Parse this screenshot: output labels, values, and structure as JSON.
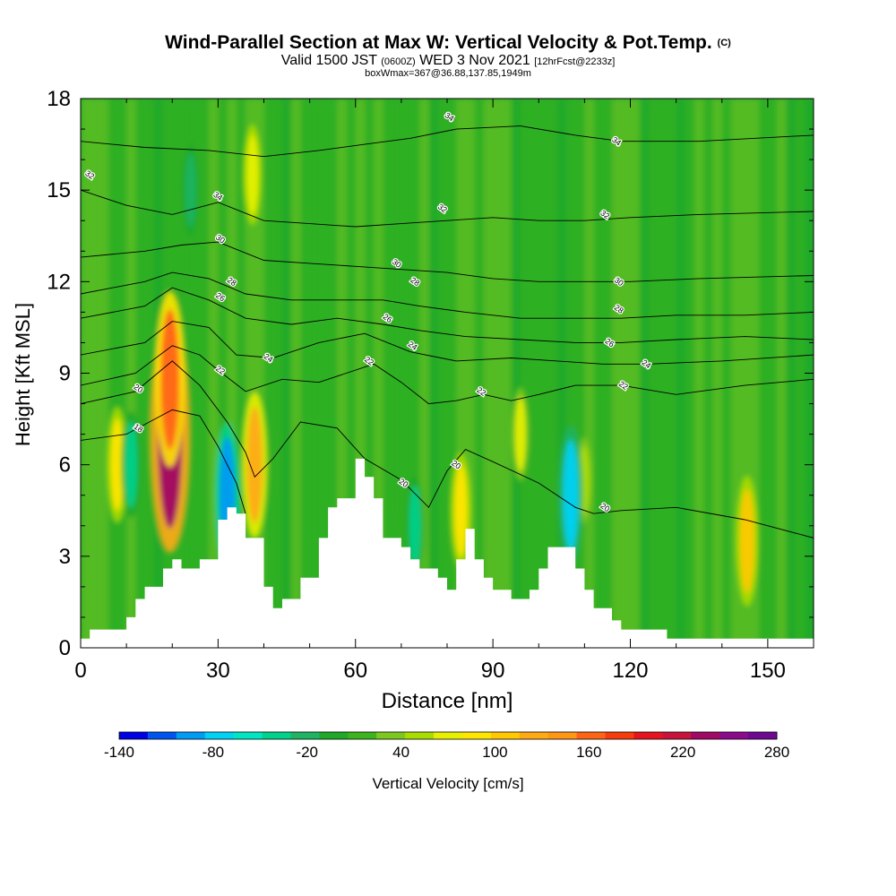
{
  "header": {
    "title": "Wind-Parallel Section at Max W: Vertical Velocity & Pot.Temp.",
    "copyright": "(C)",
    "valid_prefix": "Valid 1500 JST",
    "valid_utc": "(0600Z)",
    "valid_date": "WED 3 Nov 2021",
    "forecast": "[12hrFcst@2233z]",
    "box_wmax": "boxWmax=367@36.88,137.85,1949m"
  },
  "colorbar": {
    "title": "Vertical Velocity [cm/s]",
    "tick_labels": [
      "-140",
      "-80",
      "-20",
      "40",
      "100",
      "160",
      "220",
      "280"
    ],
    "colors": [
      "#0000e6",
      "#0055ee",
      "#009bf5",
      "#00d2f5",
      "#00e6c3",
      "#00d28c",
      "#1eb464",
      "#1eaa28",
      "#3cb41e",
      "#7dc81e",
      "#aadc00",
      "#e6f000",
      "#ffe600",
      "#ffc800",
      "#ffaa14",
      "#ff9614",
      "#ff6414",
      "#f53c0a",
      "#e6141e",
      "#c8143c",
      "#a00a64",
      "#8c0a8c",
      "#6e0a91"
    ]
  },
  "chart_data": {
    "type": "heatmap",
    "title": "Wind-Parallel Section at Max W: Vertical Velocity & Pot.Temp.",
    "xlabel": "Distance [nm]",
    "ylabel": "Height [Kft MSL]",
    "xlim": [
      0,
      160
    ],
    "ylim": [
      0,
      18
    ],
    "x_ticks": [
      0,
      30,
      60,
      90,
      120,
      150
    ],
    "y_ticks": [
      0,
      3,
      6,
      9,
      12,
      15,
      18
    ],
    "x_tick_labels": [
      "0",
      "30",
      "60",
      "90",
      "120",
      "150"
    ],
    "y_tick_labels": [
      "0",
      "3",
      "6",
      "9",
      "12",
      "15",
      "18"
    ],
    "background_fill": "#1eaa28",
    "terrain": {
      "x": [
        0,
        2,
        8,
        10,
        12,
        14,
        18,
        20,
        22,
        26,
        30,
        32,
        34,
        36,
        40,
        42,
        44,
        48,
        52,
        54,
        56,
        60,
        62,
        64,
        66,
        70,
        72,
        74,
        78,
        80,
        82,
        84,
        86,
        88,
        90,
        94,
        98,
        100,
        102,
        104,
        108,
        110,
        112,
        116,
        118,
        122,
        126,
        128,
        130,
        160
      ],
      "y": [
        0.3,
        0.6,
        0.6,
        1.0,
        1.6,
        2.0,
        2.6,
        2.9,
        2.6,
        2.9,
        4.2,
        4.6,
        4.4,
        3.6,
        2.0,
        1.3,
        1.6,
        2.3,
        3.6,
        4.6,
        4.9,
        6.2,
        5.6,
        4.9,
        3.6,
        3.3,
        2.9,
        2.6,
        2.3,
        1.9,
        2.9,
        3.9,
        2.9,
        2.3,
        1.9,
        1.6,
        1.9,
        2.6,
        3.3,
        3.3,
        2.6,
        1.9,
        1.3,
        0.9,
        0.6,
        0.6,
        0.6,
        0.3,
        0.3,
        0.3
      ]
    },
    "velocity_features": [
      {
        "name": "max updraft",
        "x": 19.5,
        "y": 7.0,
        "w_cms": 240
      },
      {
        "name": "updraft",
        "x": 19.5,
        "y": 8.8,
        "w_cms": 160
      },
      {
        "name": "updraft",
        "x": 8.0,
        "y": 6.0,
        "w_cms": 80
      },
      {
        "name": "updraft",
        "x": 38.0,
        "y": 6.0,
        "w_cms": 120
      },
      {
        "name": "updraft",
        "x": 37.5,
        "y": 15.5,
        "w_cms": 60
      },
      {
        "name": "updraft",
        "x": 83.0,
        "y": 4.5,
        "w_cms": 80
      },
      {
        "name": "updraft",
        "x": 96.0,
        "y": 7.0,
        "w_cms": 50
      },
      {
        "name": "updraft",
        "x": 145.5,
        "y": 3.5,
        "w_cms": 100
      },
      {
        "name": "updraft",
        "x": 110.0,
        "y": 5.5,
        "w_cms": 40
      },
      {
        "name": "downdraft",
        "x": 32.0,
        "y": 5.0,
        "w_cms": -120
      },
      {
        "name": "downdraft",
        "x": 107.0,
        "y": 5.0,
        "w_cms": -110
      },
      {
        "name": "downdraft",
        "x": 73.0,
        "y": 4.0,
        "w_cms": -60
      },
      {
        "name": "downdraft",
        "x": 11.0,
        "y": 6.0,
        "w_cms": -70
      },
      {
        "name": "downdraft",
        "x": 24.0,
        "y": 15.0,
        "w_cms": -50
      }
    ],
    "theta_contours": [
      {
        "label": "18",
        "level": 18,
        "pts": [
          [
            0,
            6.8
          ],
          [
            10,
            7.0
          ],
          [
            20,
            7.8
          ],
          [
            26,
            7.6
          ],
          [
            30,
            6.6
          ],
          [
            34,
            5.4
          ],
          [
            36,
            4.4
          ]
        ],
        "labels_at": [
          [
            12.6,
            7.2
          ]
        ]
      },
      {
        "label": "20",
        "level": 20,
        "pts": [
          [
            0,
            8.0
          ],
          [
            12,
            8.4
          ],
          [
            20,
            9.4
          ],
          [
            26,
            8.6
          ],
          [
            32,
            7.4
          ],
          [
            36,
            6.4
          ],
          [
            38,
            5.6
          ],
          [
            42,
            6.2
          ],
          [
            48,
            7.4
          ],
          [
            56,
            7.2
          ],
          [
            62,
            6.2
          ],
          [
            70,
            5.5
          ],
          [
            76,
            4.6
          ],
          [
            80,
            5.8
          ],
          [
            84,
            6.5
          ],
          [
            90,
            6.1
          ],
          [
            100,
            5.4
          ],
          [
            108,
            4.6
          ],
          [
            112,
            4.4
          ],
          [
            118,
            4.5
          ],
          [
            130,
            4.6
          ],
          [
            145,
            4.2
          ],
          [
            160,
            3.6
          ]
        ],
        "labels_at": [
          [
            12.6,
            8.5
          ],
          [
            70.5,
            5.4
          ],
          [
            82,
            6.0
          ],
          [
            114.5,
            4.6
          ]
        ]
      },
      {
        "label": "22",
        "level": 22,
        "pts": [
          [
            0,
            8.6
          ],
          [
            12,
            9.0
          ],
          [
            20,
            9.9
          ],
          [
            26,
            9.6
          ],
          [
            30,
            9.1
          ],
          [
            36,
            8.4
          ],
          [
            44,
            8.8
          ],
          [
            52,
            8.7
          ],
          [
            58,
            9.0
          ],
          [
            64,
            9.3
          ],
          [
            70,
            8.7
          ],
          [
            76,
            8.0
          ],
          [
            82,
            8.1
          ],
          [
            88,
            8.3
          ],
          [
            94,
            8.1
          ],
          [
            100,
            8.3
          ],
          [
            108,
            8.6
          ],
          [
            118,
            8.6
          ],
          [
            130,
            8.3
          ],
          [
            145,
            8.6
          ],
          [
            160,
            8.8
          ]
        ],
        "labels_at": [
          [
            30.5,
            9.1
          ],
          [
            63,
            9.4
          ],
          [
            87.5,
            8.4
          ],
          [
            118.5,
            8.6
          ]
        ]
      },
      {
        "label": "24",
        "level": 24,
        "pts": [
          [
            0,
            9.6
          ],
          [
            14,
            10.0
          ],
          [
            20,
            10.7
          ],
          [
            28,
            10.5
          ],
          [
            34,
            9.6
          ],
          [
            42,
            9.5
          ],
          [
            52,
            10.0
          ],
          [
            62,
            10.3
          ],
          [
            72,
            9.7
          ],
          [
            82,
            9.4
          ],
          [
            94,
            9.5
          ],
          [
            104,
            9.4
          ],
          [
            114,
            9.3
          ],
          [
            124,
            9.3
          ],
          [
            140,
            9.4
          ],
          [
            160,
            9.6
          ]
        ],
        "labels_at": [
          [
            41,
            9.5
          ],
          [
            72.5,
            9.9
          ],
          [
            123.5,
            9.3
          ]
        ]
      },
      {
        "label": "26",
        "level": 26,
        "pts": [
          [
            0,
            10.8
          ],
          [
            14,
            11.2
          ],
          [
            20,
            11.8
          ],
          [
            28,
            11.4
          ],
          [
            36,
            10.8
          ],
          [
            46,
            10.6
          ],
          [
            56,
            10.8
          ],
          [
            66,
            10.6
          ],
          [
            74,
            10.4
          ],
          [
            84,
            10.2
          ],
          [
            96,
            10.1
          ],
          [
            108,
            10.0
          ],
          [
            118,
            10.0
          ],
          [
            130,
            10.1
          ],
          [
            145,
            10.2
          ],
          [
            160,
            10.1
          ]
        ],
        "labels_at": [
          [
            30.5,
            11.5
          ],
          [
            67,
            10.8
          ],
          [
            115.5,
            10.0
          ]
        ]
      },
      {
        "label": "28",
        "level": 28,
        "pts": [
          [
            0,
            11.6
          ],
          [
            14,
            12.0
          ],
          [
            20,
            12.3
          ],
          [
            28,
            12.1
          ],
          [
            36,
            11.6
          ],
          [
            46,
            11.4
          ],
          [
            56,
            11.4
          ],
          [
            66,
            11.4
          ],
          [
            74,
            11.2
          ],
          [
            84,
            11.0
          ],
          [
            96,
            10.8
          ],
          [
            108,
            10.8
          ],
          [
            118,
            10.8
          ],
          [
            130,
            10.9
          ],
          [
            145,
            10.9
          ],
          [
            160,
            11.0
          ]
        ],
        "labels_at": [
          [
            33,
            12.0
          ],
          [
            73,
            12.0
          ],
          [
            117.5,
            11.1
          ]
        ]
      },
      {
        "label": "30",
        "level": 30,
        "pts": [
          [
            0,
            12.8
          ],
          [
            14,
            13.0
          ],
          [
            22,
            13.2
          ],
          [
            30,
            13.3
          ],
          [
            40,
            12.7
          ],
          [
            50,
            12.6
          ],
          [
            60,
            12.5
          ],
          [
            70,
            12.4
          ],
          [
            80,
            12.3
          ],
          [
            90,
            12.1
          ],
          [
            100,
            12.0
          ],
          [
            110,
            12.0
          ],
          [
            120,
            12.0
          ],
          [
            135,
            12.1
          ],
          [
            160,
            12.2
          ]
        ],
        "labels_at": [
          [
            30.5,
            13.4
          ],
          [
            69,
            12.6
          ],
          [
            117.5,
            12.0
          ]
        ]
      },
      {
        "label": "32",
        "level": 32,
        "pts": [
          [
            0,
            15.0
          ],
          [
            10,
            14.5
          ],
          [
            20,
            14.2
          ],
          [
            30,
            14.6
          ],
          [
            40,
            14.0
          ],
          [
            50,
            13.9
          ],
          [
            60,
            13.8
          ],
          [
            70,
            13.9
          ],
          [
            80,
            14.0
          ],
          [
            90,
            14.1
          ],
          [
            100,
            14.0
          ],
          [
            110,
            14.0
          ],
          [
            120,
            14.1
          ],
          [
            135,
            14.2
          ],
          [
            160,
            14.3
          ]
        ],
        "labels_at": [
          [
            2,
            15.5
          ],
          [
            79,
            14.4
          ],
          [
            114.5,
            14.2
          ]
        ]
      },
      {
        "label": "34",
        "level": 34,
        "pts": [
          [
            0,
            16.6
          ],
          [
            14,
            16.4
          ],
          [
            28,
            16.3
          ],
          [
            40,
            16.1
          ],
          [
            52,
            16.3
          ],
          [
            62,
            16.5
          ],
          [
            72,
            16.7
          ],
          [
            82,
            17.0
          ],
          [
            96,
            17.1
          ],
          [
            108,
            16.8
          ],
          [
            118,
            16.6
          ],
          [
            135,
            16.6
          ],
          [
            160,
            16.8
          ]
        ],
        "labels_at": [
          [
            30,
            14.8
          ],
          [
            80.5,
            17.4
          ],
          [
            117,
            16.6
          ]
        ]
      }
    ]
  }
}
